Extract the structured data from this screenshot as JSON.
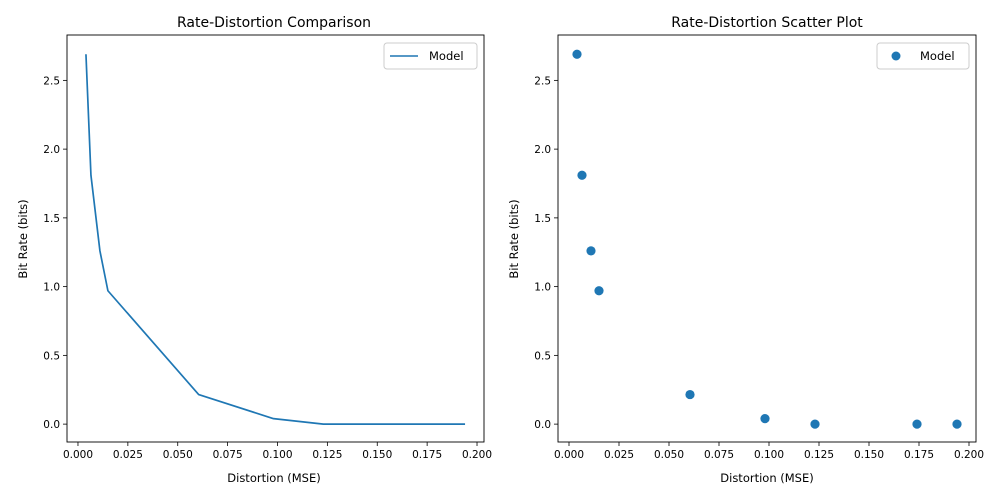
{
  "chart_data": [
    {
      "type": "line",
      "title": "Rate-Distortion Comparison",
      "xlabel": "Distortion (MSE)",
      "ylabel": "Bit Rate (bits)",
      "xlim": [
        -0.0055,
        0.2035
      ],
      "ylim": [
        -0.13,
        2.83
      ],
      "xticks": [
        0.0,
        0.025,
        0.05,
        0.075,
        0.1,
        0.125,
        0.15,
        0.175,
        0.2
      ],
      "xtick_labels": [
        "0.000",
        "0.025",
        "0.050",
        "0.075",
        "0.100",
        "0.125",
        "0.150",
        "0.175",
        "0.200"
      ],
      "yticks": [
        0.0,
        0.5,
        1.0,
        1.5,
        2.0,
        2.5
      ],
      "ytick_labels": [
        "0.0",
        "0.5",
        "1.0",
        "1.5",
        "2.0",
        "2.5"
      ],
      "legend_position": "top-right",
      "grid": false,
      "series": [
        {
          "name": "Model",
          "color": "#1f77b4",
          "x": [
            0.004,
            0.0065,
            0.011,
            0.015,
            0.0605,
            0.098,
            0.123,
            0.174,
            0.194
          ],
          "y": [
            2.69,
            1.81,
            1.26,
            0.97,
            0.215,
            0.04,
            0.0,
            0.0,
            0.0
          ]
        }
      ]
    },
    {
      "type": "scatter",
      "title": "Rate-Distortion Scatter Plot",
      "xlabel": "Distortion (MSE)",
      "ylabel": "Bit Rate (bits)",
      "xlim": [
        -0.0055,
        0.2035
      ],
      "ylim": [
        -0.13,
        2.83
      ],
      "xticks": [
        0.0,
        0.025,
        0.05,
        0.075,
        0.1,
        0.125,
        0.15,
        0.175,
        0.2
      ],
      "xtick_labels": [
        "0.000",
        "0.025",
        "0.050",
        "0.075",
        "0.100",
        "0.125",
        "0.150",
        "0.175",
        "0.200"
      ],
      "yticks": [
        0.0,
        0.5,
        1.0,
        1.5,
        2.0,
        2.5
      ],
      "ytick_labels": [
        "0.0",
        "0.5",
        "1.0",
        "1.5",
        "2.0",
        "2.5"
      ],
      "legend_position": "top-right",
      "grid": false,
      "series": [
        {
          "name": "Model",
          "color": "#1f77b4",
          "x": [
            0.004,
            0.0065,
            0.011,
            0.015,
            0.0605,
            0.098,
            0.123,
            0.174,
            0.194
          ],
          "y": [
            2.69,
            1.81,
            1.26,
            0.97,
            0.215,
            0.04,
            0.0,
            0.0,
            0.0
          ]
        }
      ]
    }
  ]
}
